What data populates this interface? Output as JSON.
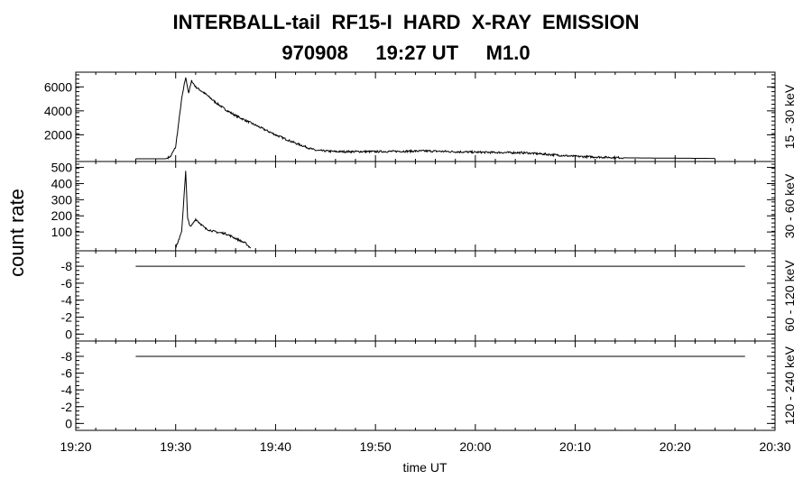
{
  "header": {
    "title_line1": "INTERBALL-tail  RF15-I  HARD  X-RAY  EMISSION",
    "title_line2": "970908     19:27 UT     M1.0"
  },
  "chart_data": {
    "type": "line",
    "xlabel": "time UT",
    "ylabel": "count rate",
    "xlim": [
      "19:20",
      "20:30"
    ],
    "x_tick_labels": [
      "19:20",
      "19:30",
      "19:40",
      "19:50",
      "20:00",
      "20:10",
      "20:20",
      "20:30"
    ],
    "panels": [
      {
        "band": "15 - 30 keV",
        "ylim": [
          0,
          7000
        ],
        "y_tick_labels": [
          "2000",
          "4000",
          "6000"
        ],
        "x": [
          "19:26",
          "19:29",
          "19:29.5",
          "19:30",
          "19:30.3",
          "19:30.6",
          "19:31",
          "19:31.3",
          "19:31.6",
          "19:32",
          "19:33",
          "19:34",
          "19:35",
          "19:36",
          "19:38",
          "19:40",
          "19:42",
          "19:44",
          "19:46",
          "19:50",
          "19:55",
          "20:00",
          "20:05",
          "20:10",
          "20:15",
          "20:20",
          "20:24"
        ],
        "values": [
          0,
          0,
          200,
          1000,
          3000,
          5000,
          6800,
          5500,
          6500,
          6000,
          5400,
          4700,
          4100,
          3600,
          2800,
          2000,
          1300,
          700,
          600,
          600,
          650,
          550,
          500,
          200,
          80,
          50,
          30
        ]
      },
      {
        "band": "30 - 60 keV",
        "ylim": [
          0,
          520
        ],
        "y_tick_labels": [
          "100",
          "200",
          "300",
          "400",
          "500"
        ],
        "x": [
          "19:30",
          "19:30.3",
          "19:30.6",
          "19:31",
          "19:31.2",
          "19:31.5",
          "19:32",
          "19:33",
          "19:34",
          "19:35",
          "19:36",
          "19:37",
          "19:37.5"
        ],
        "values": [
          0,
          50,
          100,
          480,
          180,
          130,
          180,
          120,
          100,
          90,
          60,
          30,
          0
        ]
      },
      {
        "band": "60 - 120 keV",
        "ylim": [
          0.5,
          -9.5
        ],
        "y_tick_labels": [
          "0",
          "-2",
          "-4",
          "-6",
          "-8"
        ],
        "x": [
          "19:26",
          "20:27"
        ],
        "values": [
          -8,
          -8
        ]
      },
      {
        "band": "120 - 240 keV",
        "ylim": [
          0.5,
          -9.5
        ],
        "y_tick_labels": [
          "0",
          "-2",
          "-4",
          "-6",
          "-8"
        ],
        "x": [
          "19:26",
          "20:27"
        ],
        "values": [
          -8,
          -8
        ]
      }
    ]
  }
}
